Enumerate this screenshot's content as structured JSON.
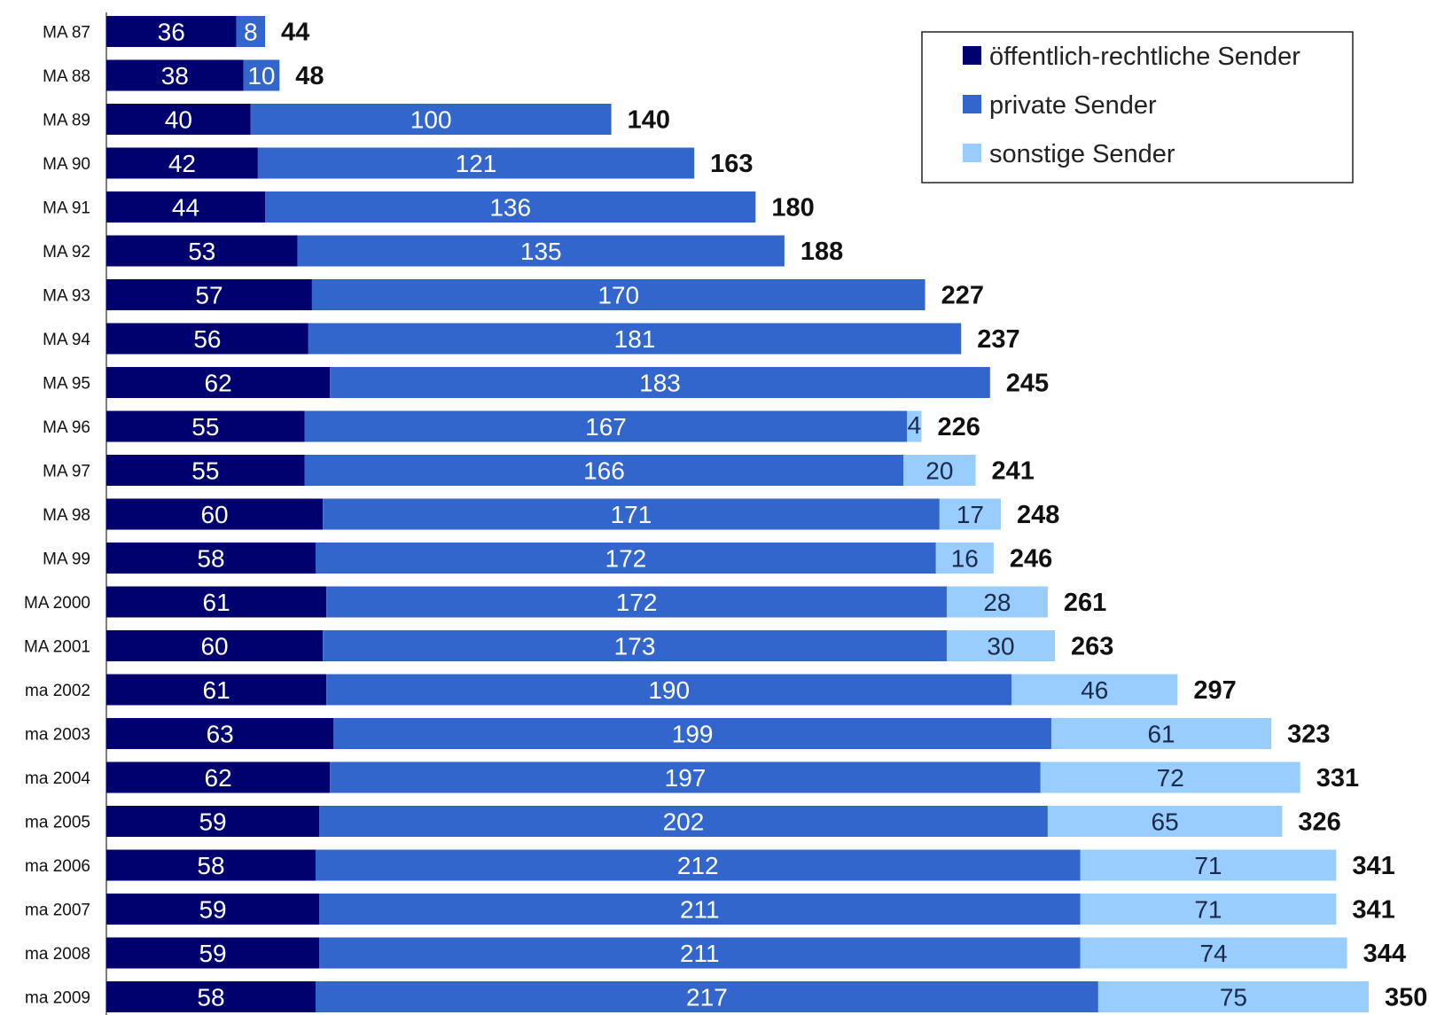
{
  "chart_data": {
    "type": "bar",
    "orientation": "horizontal",
    "stacked": true,
    "categories": [
      "MA 87",
      "MA 88",
      "MA 89",
      "MA 90",
      "MA 91",
      "MA 92",
      "MA 93",
      "MA 94",
      "MA 95",
      "MA 96",
      "MA 97",
      "MA 98",
      "MA 99",
      "MA 2000",
      "MA 2001",
      "ma 2002",
      "ma 2003",
      "ma 2004",
      "ma 2005",
      "ma 2006",
      "ma 2007",
      "ma 2008",
      "ma 2009"
    ],
    "series": [
      {
        "name": "öffentlich-rechtliche Sender",
        "color": "#00006e",
        "values": [
          36,
          38,
          40,
          42,
          44,
          53,
          57,
          56,
          62,
          55,
          55,
          60,
          58,
          61,
          60,
          61,
          63,
          62,
          59,
          58,
          59,
          59,
          58
        ]
      },
      {
        "name": "private Sender",
        "color": "#3366cc",
        "values": [
          8,
          10,
          100,
          121,
          136,
          135,
          170,
          181,
          183,
          167,
          166,
          171,
          172,
          172,
          173,
          190,
          199,
          197,
          202,
          212,
          211,
          211,
          217
        ]
      },
      {
        "name": "sonstige Sender",
        "color": "#99ccff",
        "values": [
          null,
          null,
          null,
          null,
          null,
          null,
          null,
          null,
          null,
          4,
          20,
          17,
          16,
          28,
          30,
          46,
          61,
          72,
          65,
          71,
          71,
          74,
          75
        ]
      }
    ],
    "totals": [
      44,
      48,
      140,
      163,
      180,
      188,
      227,
      237,
      245,
      226,
      241,
      248,
      246,
      261,
      263,
      297,
      323,
      331,
      326,
      341,
      341,
      344,
      350
    ],
    "xlim": [
      0,
      350
    ],
    "grid": false,
    "legend_position": "top-right"
  }
}
